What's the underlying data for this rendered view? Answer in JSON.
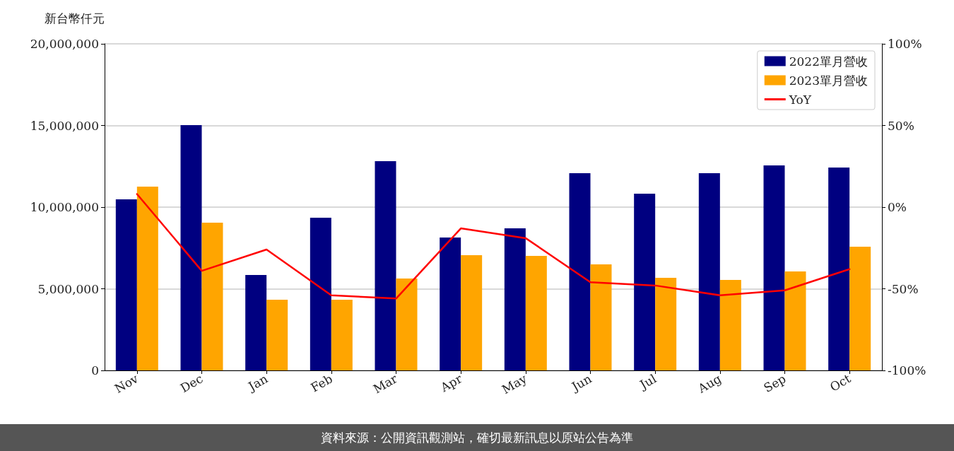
{
  "chart_data": {
    "type": "bar",
    "ylabel": "新台幣仟元",
    "categories": [
      "Nov",
      "Dec",
      "Jan",
      "Feb",
      "Mar",
      "Apr",
      "May",
      "Jun",
      "Jul",
      "Aug",
      "Sep",
      "Oct"
    ],
    "series": [
      {
        "name": "2022單月營收",
        "color": "#000080",
        "values": [
          10480000,
          15020000,
          5840000,
          9350000,
          12810000,
          8140000,
          8700000,
          12080000,
          10820000,
          12080000,
          12550000,
          12420000
        ]
      },
      {
        "name": "2023單月營收",
        "color": "#ffa500",
        "values": [
          11260000,
          9050000,
          4330000,
          4330000,
          5630000,
          7060000,
          7010000,
          6490000,
          5670000,
          5540000,
          6060000,
          7580000
        ]
      },
      {
        "name": "YoY",
        "type": "line",
        "axis": "y2",
        "color": "#ff0000",
        "marker": "none",
        "line_style": "solid",
        "values": [
          8,
          -39,
          -26,
          -54,
          -56,
          -13,
          -19,
          -46,
          -48,
          -54,
          -51,
          -38
        ]
      }
    ],
    "ylim": [
      0,
      20000000
    ],
    "yticks": [
      0,
      {
        "value": 5000000,
        "label": "5,000,000"
      },
      {
        "value": 10000000,
        "label": "10,000,000"
      },
      {
        "value": 15000000,
        "label": "15,000,000"
      },
      {
        "value": 20000000,
        "label": "20,000,000"
      }
    ],
    "y2lim": [
      -100,
      100
    ],
    "y2ticks": [
      {
        "value": -100,
        "label": "-100%"
      },
      {
        "value": -50,
        "label": "-50%"
      },
      {
        "value": 0,
        "label": "0%"
      },
      {
        "value": 50,
        "label": "50%"
      },
      {
        "value": 100,
        "label": "100%"
      }
    ],
    "grid": "y",
    "legend": "top right",
    "annotations": [
      "資料來源：公開資訊觀測站，確切最新訊息以原站公告為準"
    ]
  }
}
